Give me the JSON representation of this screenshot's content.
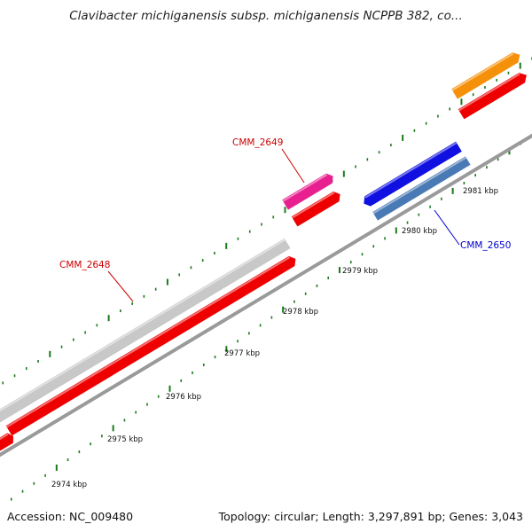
{
  "title": "Clavibacter michiganensis subsp. michiganensis NCPPB 382, co...",
  "footer": {
    "accession": "Accession: NC_009480",
    "summary": "Topology: circular; Length: 3,297,891 bp; Genes: 3,043"
  },
  "scale": {
    "unit": "kbp",
    "ticks": [
      "2974 kbp",
      "2975 kbp",
      "2976 kbp",
      "2977 kbp",
      "2978 kbp",
      "2979 kbp",
      "2980 kbp",
      "2981 kbp"
    ]
  },
  "genes": [
    {
      "name": "CMM_2648",
      "color": "#c8c8c8",
      "strand": "forward",
      "labeled": true,
      "label_color": "#cc0000"
    },
    {
      "name": "CMM_2649",
      "color": "#e8208f",
      "strand": "forward",
      "labeled": true,
      "label_color": "#cc0000"
    },
    {
      "name": "CMM_2650",
      "color": "#4a7ab5",
      "strand": "reverse",
      "labeled": true,
      "label_color": "#0000cc"
    },
    {
      "name": "blue-gene",
      "color": "#1010e0",
      "strand": "reverse",
      "labeled": false
    },
    {
      "name": "orange-gene",
      "color": "#f5900a",
      "strand": "forward",
      "labeled": false
    },
    {
      "name": "cds-feature",
      "color": "#ee0000",
      "strand": "forward",
      "labeled": false
    }
  ],
  "colors": {
    "backbone": "#9a9a9a",
    "tick": "#1a7a1a"
  }
}
